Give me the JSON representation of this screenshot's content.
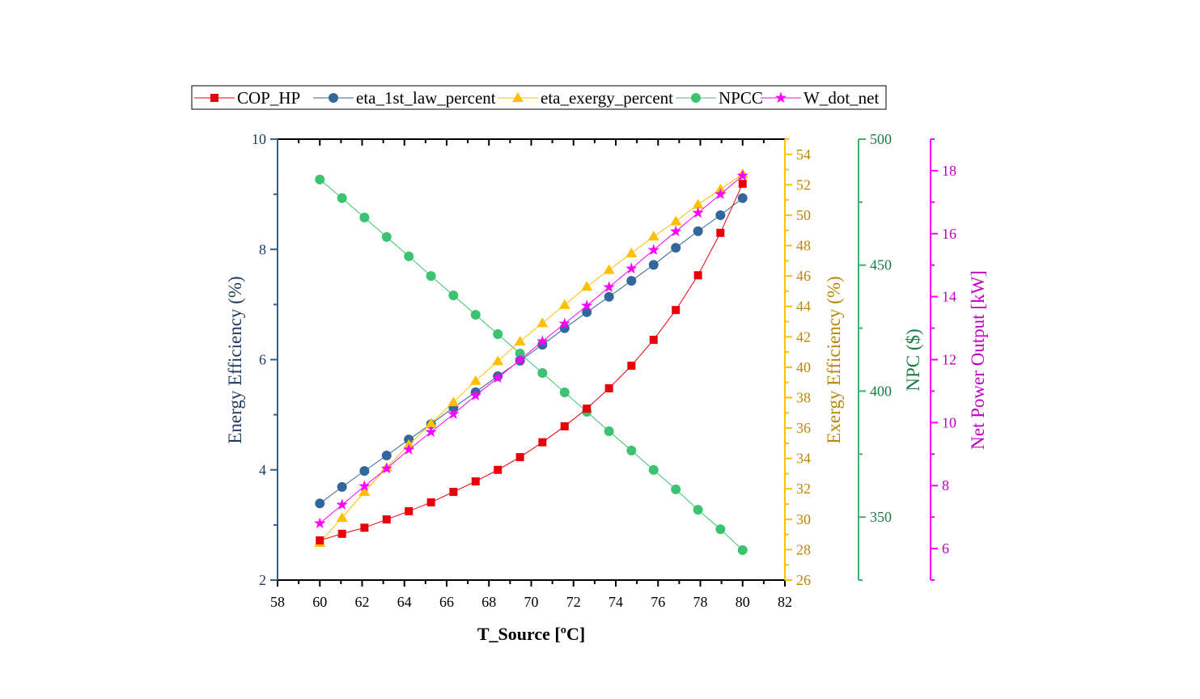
{
  "chart_data": {
    "type": "line",
    "title": "",
    "xlabel": "T_Source [ºC]",
    "xlim": [
      58,
      82
    ],
    "xticks": [
      58,
      60,
      62,
      64,
      66,
      68,
      70,
      72,
      74,
      76,
      78,
      80,
      82
    ],
    "x": [
      60,
      61.05,
      62.11,
      63.16,
      64.21,
      65.26,
      66.32,
      67.37,
      68.42,
      69.47,
      70.53,
      71.58,
      72.63,
      73.68,
      74.74,
      75.79,
      76.84,
      77.89,
      78.95,
      80
    ],
    "legend_position": "top",
    "grid": false,
    "axes": [
      {
        "id": "energy",
        "label": "Energy Efficiency (%)",
        "ylim": [
          2,
          10
        ],
        "ticks": [
          2,
          4,
          6,
          8,
          10
        ],
        "color": "#2F5F8F",
        "textColor": "#1F3A5F"
      },
      {
        "id": "exergy",
        "label": "Exergy Efficiency (%)",
        "ylim": [
          26,
          55
        ],
        "ticks": [
          26,
          28,
          30,
          32,
          34,
          36,
          38,
          40,
          42,
          44,
          46,
          48,
          50,
          52,
          54
        ],
        "color": "#FFC000",
        "textColor": "#B8860B"
      },
      {
        "id": "npc",
        "label": "NPC ($)",
        "ylim": [
          325,
          500
        ],
        "ticks": [
          350,
          400,
          450,
          500
        ],
        "color": "#3CB371",
        "textColor": "#1E7A45"
      },
      {
        "id": "power",
        "label": "Net Power Output [kW]",
        "ylim": [
          5,
          19
        ],
        "ticks": [
          6,
          8,
          10,
          12,
          14,
          16,
          18
        ],
        "color": "#FF00FF",
        "textColor": "#C000C0"
      }
    ],
    "series": [
      {
        "name": "COP_HP",
        "axis": "energy",
        "marker": "square",
        "color": "#E8000B",
        "values": [
          2.72,
          2.84,
          2.95,
          3.1,
          3.25,
          3.41,
          3.6,
          3.79,
          4.0,
          4.23,
          4.5,
          4.79,
          5.11,
          5.48,
          5.89,
          6.36,
          6.9,
          7.53,
          8.3,
          9.19
        ]
      },
      {
        "name": "eta_1st_law_percent",
        "axis": "energy",
        "marker": "circle",
        "color": "#336699",
        "values": [
          3.39,
          3.69,
          3.98,
          4.26,
          4.55,
          4.83,
          5.13,
          5.41,
          5.7,
          5.98,
          6.27,
          6.57,
          6.86,
          7.14,
          7.43,
          7.72,
          8.03,
          8.33,
          8.62,
          8.93
        ]
      },
      {
        "name": "eta_exergy_percent",
        "axis": "exergy",
        "marker": "triangle",
        "color": "#FFC000",
        "values": [
          28.45,
          30.1,
          31.8,
          33.4,
          34.9,
          36.3,
          37.7,
          39.1,
          40.4,
          41.7,
          42.9,
          44.1,
          45.3,
          46.4,
          47.5,
          48.6,
          49.6,
          50.7,
          51.7,
          52.7
        ]
      },
      {
        "name": "NPCC",
        "axis": "npc",
        "marker": "circle",
        "color": "#3CC372",
        "values": [
          484.0,
          476.6,
          468.9,
          461.2,
          453.5,
          445.7,
          438.0,
          430.3,
          422.6,
          414.9,
          407.2,
          399.5,
          391.8,
          384.1,
          376.4,
          368.7,
          361.0,
          352.9,
          345.2,
          336.9
        ]
      },
      {
        "name": "W_dot_net",
        "axis": "power",
        "marker": "star",
        "color": "#FF00FF",
        "values": [
          6.8,
          7.39,
          7.98,
          8.54,
          9.14,
          9.7,
          10.27,
          10.86,
          11.42,
          11.99,
          12.58,
          13.14,
          13.71,
          14.3,
          14.89,
          15.48,
          16.07,
          16.66,
          17.25,
          17.84
        ]
      }
    ]
  }
}
